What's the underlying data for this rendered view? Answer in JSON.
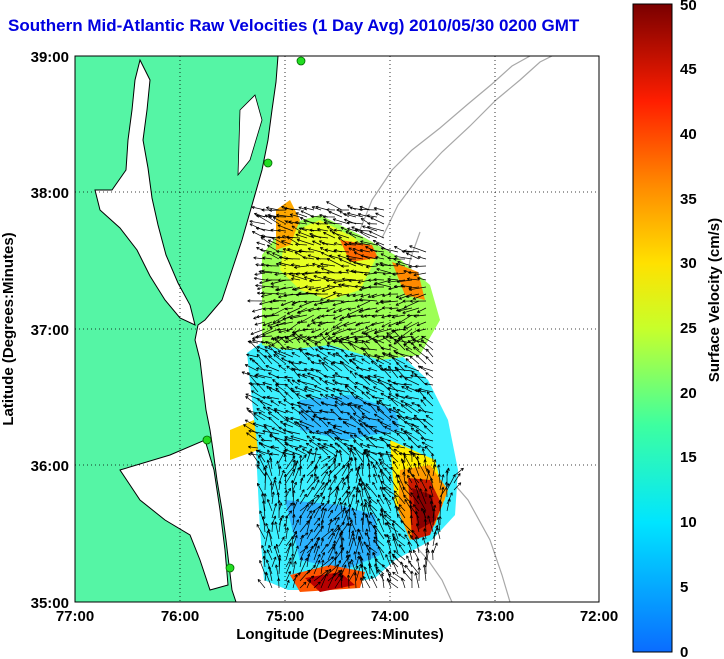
{
  "title": "Southern Mid-Atlantic Raw Velocities (1 Day Avg) 2010/05/30 0200 GMT",
  "colors": {
    "title": "#0000e0",
    "land": "#55f5a5",
    "coastline": "#000000",
    "bathymetry_contours": "#a8a8a8",
    "grid": "#000000",
    "hf_radar_sites": "#22dd22",
    "vectors": "#000000"
  },
  "map": {
    "lon_range": [
      -77,
      -72
    ],
    "lat_range": [
      35,
      39
    ],
    "xaxis_label": "Longitude (Degrees:Minutes)",
    "yaxis_label": "Latitude (Degrees:Minutes)",
    "xticks": [
      "77:00",
      "76:00",
      "75:00",
      "74:00",
      "73:00",
      "72:00"
    ],
    "yticks": [
      "39:00",
      "38:00",
      "37:00",
      "36:00",
      "35:00"
    ],
    "grid": "dotted"
  },
  "colorbar": {
    "label": "Surface Velocity (cm/s)",
    "min": 0,
    "max": 50,
    "ticks": [
      "0",
      "5",
      "10",
      "15",
      "20",
      "25",
      "30",
      "35",
      "40",
      "45",
      "50"
    ]
  }
}
